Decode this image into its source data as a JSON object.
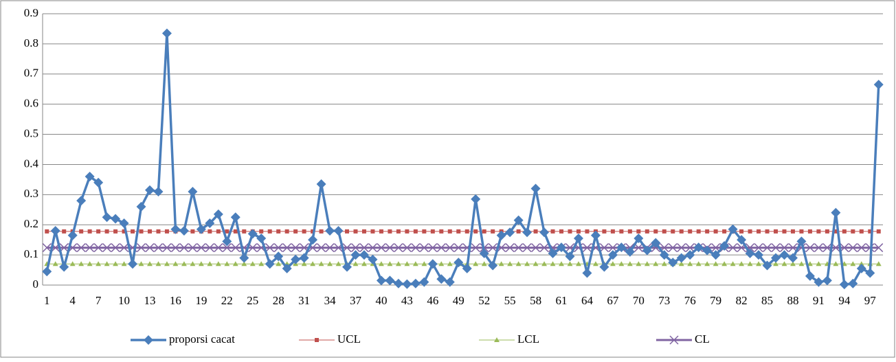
{
  "chart_data": {
    "type": "line",
    "categories": [
      1,
      null,
      null,
      4,
      null,
      null,
      7,
      null,
      null,
      10,
      null,
      null,
      13,
      null,
      null,
      16,
      null,
      null,
      19,
      null,
      null,
      22,
      null,
      null,
      25,
      null,
      null,
      28,
      null,
      null,
      31,
      null,
      null,
      34,
      null,
      null,
      37,
      null,
      null,
      40,
      null,
      null,
      43,
      null,
      null,
      46,
      null,
      null,
      49,
      null,
      null,
      52,
      null,
      null,
      55,
      null,
      null,
      58,
      null,
      null,
      61,
      null,
      null,
      64,
      null,
      null,
      67,
      null,
      null,
      70,
      null,
      null,
      73,
      null,
      null,
      76,
      null,
      null,
      79,
      null,
      null,
      82,
      null,
      null,
      85,
      null,
      null,
      88,
      null,
      null,
      91,
      null,
      null,
      94,
      null,
      null,
      97,
      null
    ],
    "series": [
      {
        "name": "proporsi cacat",
        "color": "#4a7ebb",
        "marker": "diamond",
        "width": 3.5,
        "values": [
          0.045,
          0.18,
          0.06,
          0.165,
          0.28,
          0.36,
          0.34,
          0.225,
          0.22,
          0.205,
          0.07,
          0.26,
          0.315,
          0.31,
          0.835,
          0.185,
          0.18,
          0.31,
          0.185,
          0.205,
          0.235,
          0.145,
          0.225,
          0.09,
          0.17,
          0.155,
          0.07,
          0.095,
          0.055,
          0.085,
          0.09,
          0.15,
          0.335,
          0.18,
          0.18,
          0.06,
          0.1,
          0.1,
          0.085,
          0.015,
          0.015,
          0.005,
          0.003,
          0.005,
          0.01,
          0.07,
          0.02,
          0.01,
          0.075,
          0.055,
          0.285,
          0.105,
          0.065,
          0.165,
          0.175,
          0.215,
          0.175,
          0.32,
          0.175,
          0.105,
          0.125,
          0.095,
          0.155,
          0.04,
          0.165,
          0.06,
          0.1,
          0.125,
          0.11,
          0.155,
          0.115,
          0.14,
          0.1,
          0.075,
          0.09,
          0.1,
          0.125,
          0.115,
          0.1,
          0.13,
          0.185,
          0.15,
          0.105,
          0.1,
          0.065,
          0.09,
          0.1,
          0.09,
          0.145,
          0.03,
          0.01,
          0.015,
          0.24,
          0.002,
          0.005,
          0.055,
          0.04,
          0.665
        ]
      },
      {
        "name": "UCL",
        "color": "#c0504d",
        "marker": "square",
        "width": 1,
        "values": [
          0.178,
          0.178,
          0.178,
          0.178,
          0.178,
          0.178,
          0.178,
          0.178,
          0.178,
          0.178,
          0.178,
          0.178,
          0.178,
          0.178,
          0.178,
          0.178,
          0.178,
          0.178,
          0.178,
          0.178,
          0.178,
          0.178,
          0.178,
          0.178,
          0.178,
          0.178,
          0.178,
          0.178,
          0.178,
          0.178,
          0.178,
          0.178,
          0.178,
          0.178,
          0.178,
          0.178,
          0.178,
          0.178,
          0.178,
          0.178,
          0.178,
          0.178,
          0.178,
          0.178,
          0.178,
          0.178,
          0.178,
          0.178,
          0.178,
          0.178,
          0.178,
          0.178,
          0.178,
          0.178,
          0.178,
          0.178,
          0.178,
          0.178,
          0.178,
          0.178,
          0.178,
          0.178,
          0.178,
          0.178,
          0.178,
          0.178,
          0.178,
          0.178,
          0.178,
          0.178,
          0.178,
          0.178,
          0.178,
          0.178,
          0.178,
          0.178,
          0.178,
          0.178,
          0.178,
          0.178,
          0.178,
          0.178,
          0.178,
          0.178,
          0.178,
          0.178,
          0.178,
          0.178,
          0.178,
          0.178,
          0.178,
          0.178,
          0.178,
          0.178,
          0.178,
          0.178,
          0.178,
          0.178
        ]
      },
      {
        "name": "LCL",
        "color": "#9bbb59",
        "marker": "triangle",
        "width": 1,
        "values": [
          0.07,
          0.07,
          0.07,
          0.07,
          0.07,
          0.07,
          0.07,
          0.07,
          0.07,
          0.07,
          0.07,
          0.07,
          0.07,
          0.07,
          0.07,
          0.07,
          0.07,
          0.07,
          0.07,
          0.07,
          0.07,
          0.07,
          0.07,
          0.07,
          0.07,
          0.07,
          0.07,
          0.07,
          0.07,
          0.07,
          0.07,
          0.07,
          0.07,
          0.07,
          0.07,
          0.07,
          0.07,
          0.07,
          0.07,
          0.07,
          0.07,
          0.07,
          0.07,
          0.07,
          0.07,
          0.07,
          0.07,
          0.07,
          0.07,
          0.07,
          0.07,
          0.07,
          0.07,
          0.07,
          0.07,
          0.07,
          0.07,
          0.07,
          0.07,
          0.07,
          0.07,
          0.07,
          0.07,
          0.07,
          0.07,
          0.07,
          0.07,
          0.07,
          0.07,
          0.07,
          0.07,
          0.07,
          0.07,
          0.07,
          0.07,
          0.07,
          0.07,
          0.07,
          0.07,
          0.07,
          0.07,
          0.07,
          0.07,
          0.07,
          0.07,
          0.07,
          0.07,
          0.07,
          0.07,
          0.07,
          0.07,
          0.07,
          0.07,
          0.07,
          0.07,
          0.07,
          0.07,
          0.07
        ]
      },
      {
        "name": "CL",
        "color": "#8064a2",
        "marker": "x",
        "width": 3,
        "values": [
          0.124,
          0.124,
          0.124,
          0.124,
          0.124,
          0.124,
          0.124,
          0.124,
          0.124,
          0.124,
          0.124,
          0.124,
          0.124,
          0.124,
          0.124,
          0.124,
          0.124,
          0.124,
          0.124,
          0.124,
          0.124,
          0.124,
          0.124,
          0.124,
          0.124,
          0.124,
          0.124,
          0.124,
          0.124,
          0.124,
          0.124,
          0.124,
          0.124,
          0.124,
          0.124,
          0.124,
          0.124,
          0.124,
          0.124,
          0.124,
          0.124,
          0.124,
          0.124,
          0.124,
          0.124,
          0.124,
          0.124,
          0.124,
          0.124,
          0.124,
          0.124,
          0.124,
          0.124,
          0.124,
          0.124,
          0.124,
          0.124,
          0.124,
          0.124,
          0.124,
          0.124,
          0.124,
          0.124,
          0.124,
          0.124,
          0.124,
          0.124,
          0.124,
          0.124,
          0.124,
          0.124,
          0.124,
          0.124,
          0.124,
          0.124,
          0.124,
          0.124,
          0.124,
          0.124,
          0.124,
          0.124,
          0.124,
          0.124,
          0.124,
          0.124,
          0.124,
          0.124,
          0.124,
          0.124,
          0.124,
          0.124,
          0.124,
          0.124,
          0.124,
          0.124,
          0.124,
          0.124,
          0.124
        ]
      }
    ],
    "ylim": [
      0,
      0.9
    ],
    "yticks": [
      0,
      0.1,
      0.2,
      0.3,
      0.4,
      0.5,
      0.6,
      0.7,
      0.8,
      0.9
    ],
    "grid": true,
    "legend": "bottom"
  }
}
